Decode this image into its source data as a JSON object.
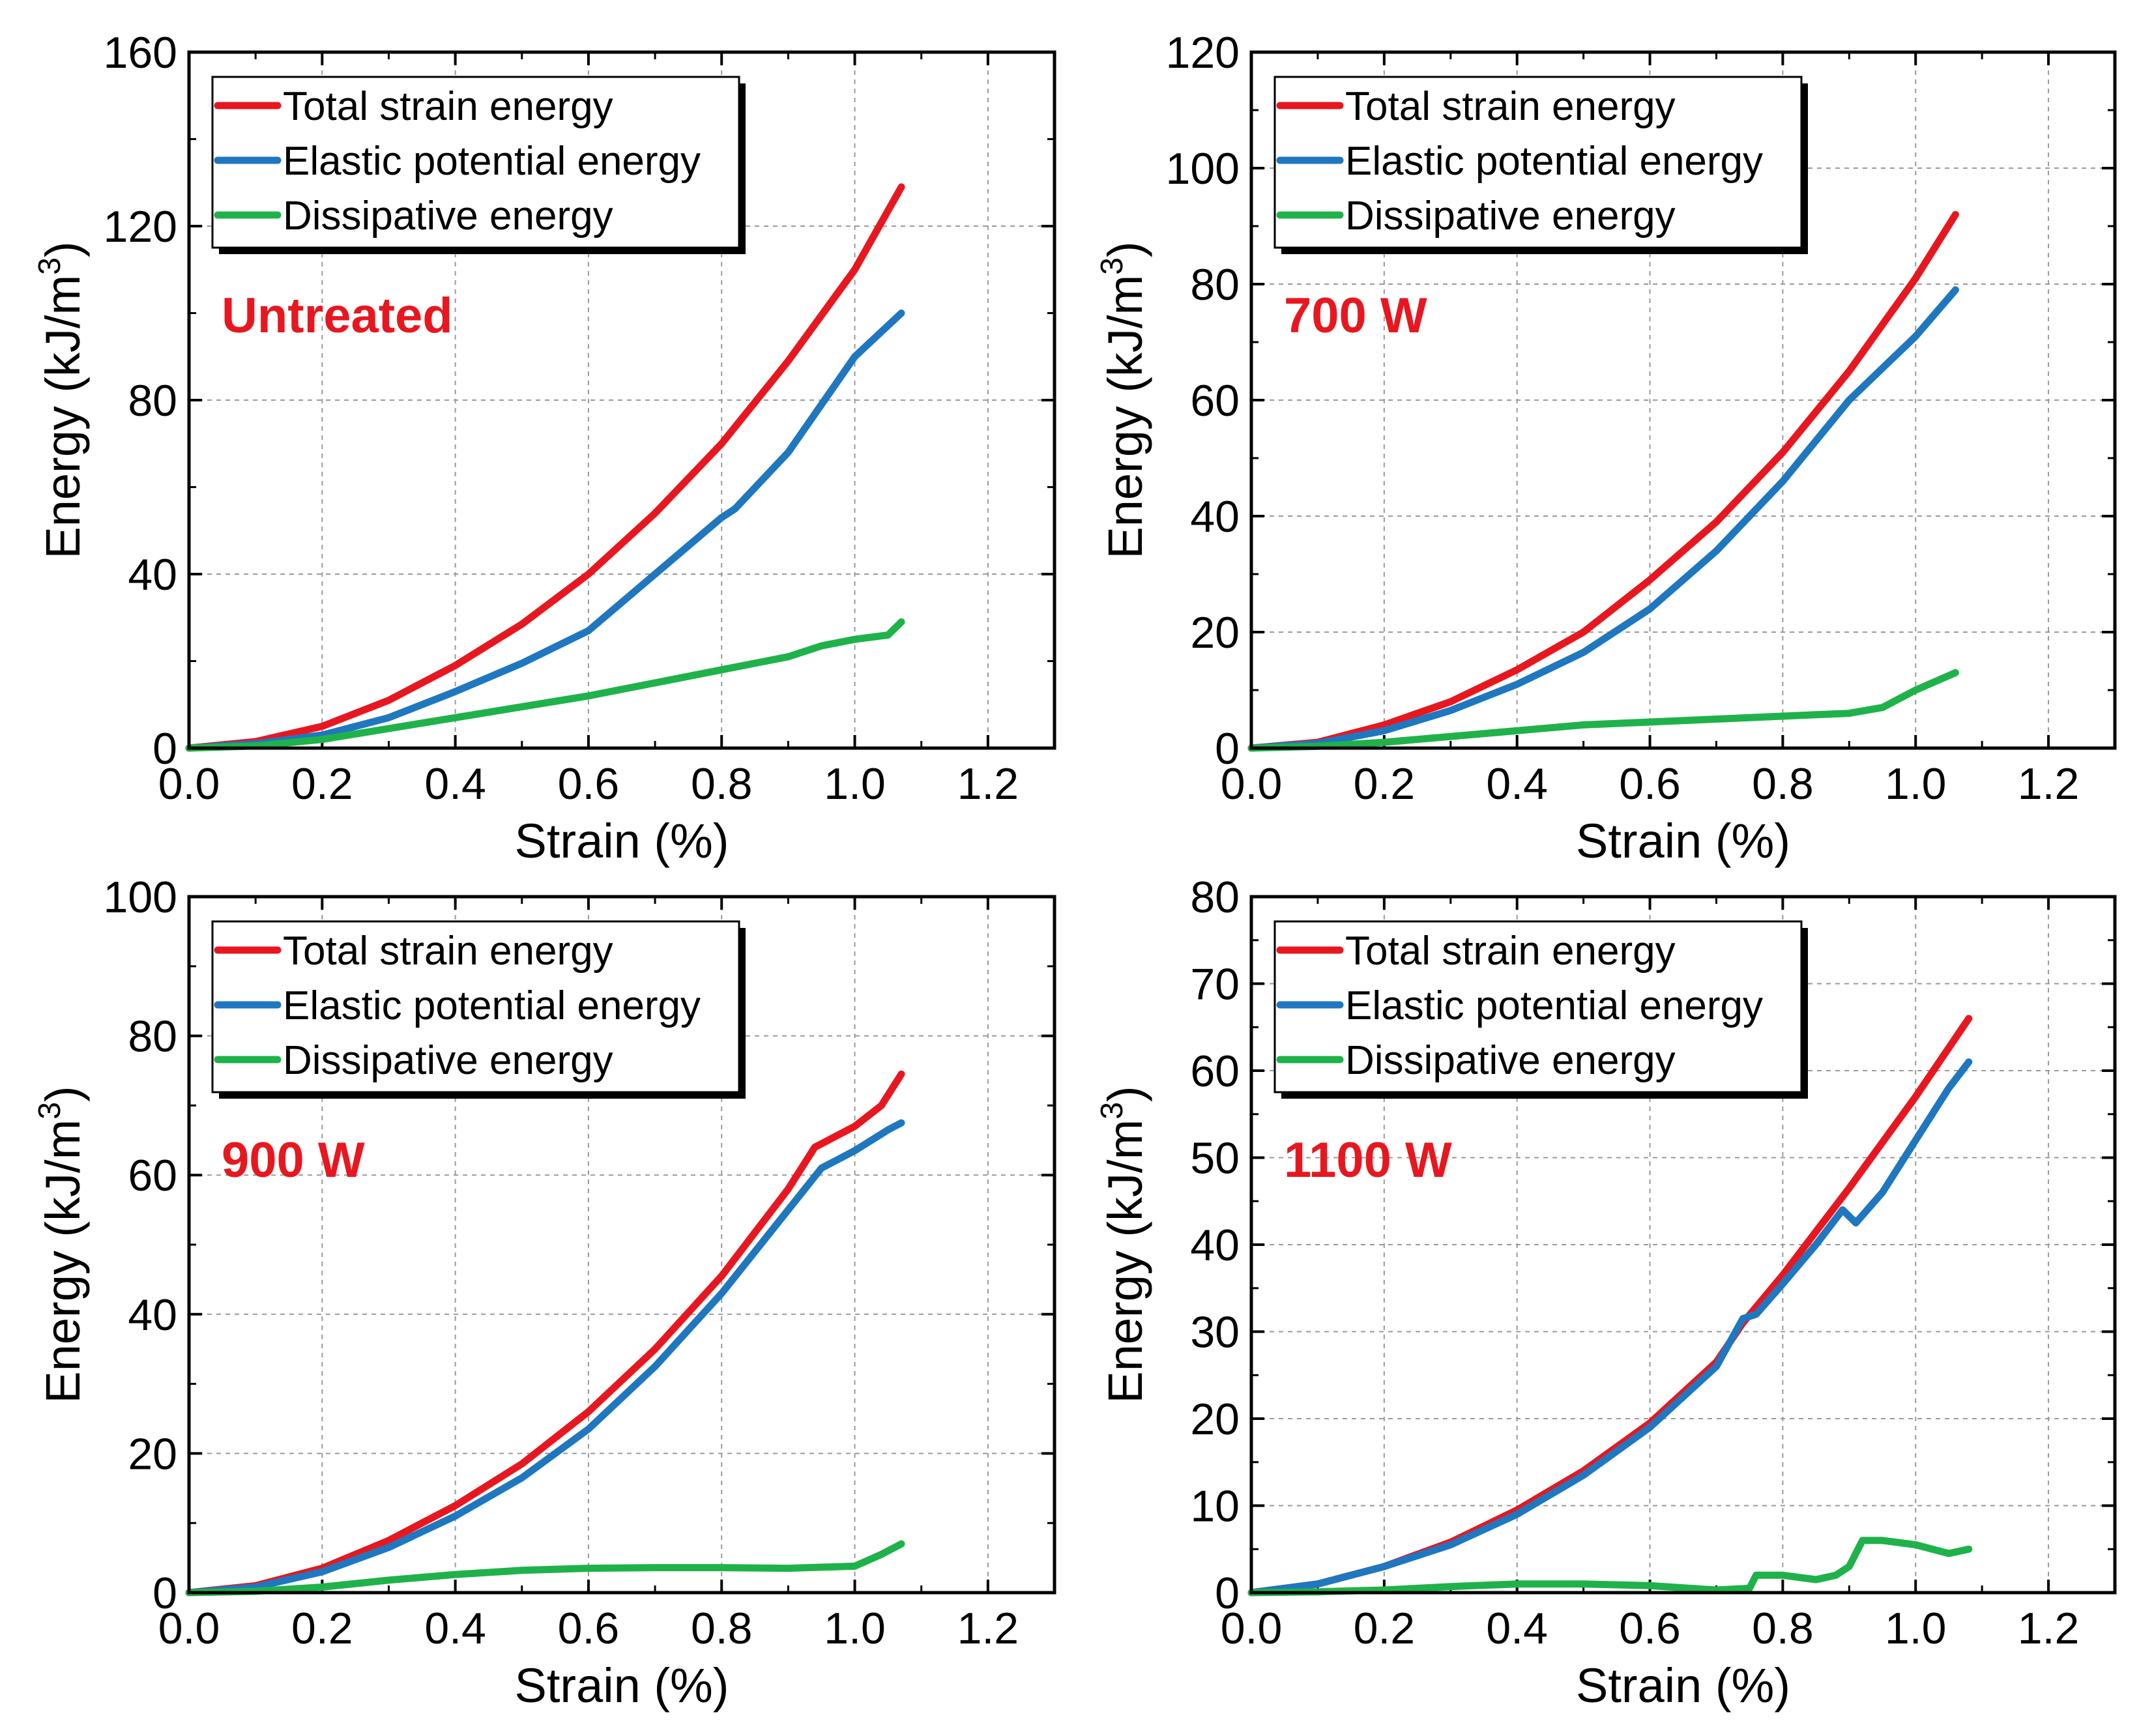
{
  "figure": {
    "legend_labels": [
      "Total strain energy",
      "Elastic potential energy",
      "Dissipative energy"
    ],
    "colors": {
      "total": "#e8171f",
      "elastic": "#1f77c0",
      "dissipative": "#1fb24a",
      "label": "#e8171f",
      "grid": "#9a9a9a"
    }
  },
  "chart_data": [
    {
      "type": "line",
      "label": "Untreated",
      "xlabel": "Strain (%)",
      "ylabel": "Energy (kJ/m",
      "ylabel_sup": "3",
      "ylabel_end": ")",
      "xlim": [
        0,
        1.3
      ],
      "ylim": [
        0,
        160
      ],
      "xticks": [
        "0.0",
        "0.2",
        "0.4",
        "0.6",
        "0.8",
        "1.0",
        "1.2"
      ],
      "yticks": [
        "0",
        "40",
        "80",
        "120",
        "160"
      ],
      "ytick_values": [
        0,
        40,
        80,
        120,
        160
      ],
      "legend": "top-left",
      "grid": true,
      "series": [
        {
          "name": "Total strain energy",
          "x": [
            0,
            0.1,
            0.2,
            0.3,
            0.4,
            0.5,
            0.6,
            0.7,
            0.8,
            0.9,
            1.0,
            1.07
          ],
          "y": [
            0,
            1.5,
            5,
            11,
            19,
            28.5,
            40,
            54,
            70,
            89,
            110,
            129
          ]
        },
        {
          "name": "Elastic potential energy",
          "x": [
            0,
            0.1,
            0.2,
            0.3,
            0.4,
            0.5,
            0.6,
            0.7,
            0.8,
            0.82,
            0.9,
            0.95,
            1.0,
            1.07
          ],
          "y": [
            0,
            1,
            3,
            7,
            13,
            19.5,
            27,
            40,
            53,
            55,
            68,
            79,
            90,
            100
          ]
        },
        {
          "name": "Dissipative energy",
          "x": [
            0,
            0.1,
            0.2,
            0.3,
            0.4,
            0.5,
            0.6,
            0.7,
            0.8,
            0.9,
            0.95,
            1.0,
            1.05,
            1.07
          ],
          "y": [
            0,
            0.5,
            2,
            4.5,
            7,
            9.5,
            12,
            15,
            18,
            21,
            23.5,
            25,
            26,
            29
          ]
        }
      ]
    },
    {
      "type": "line",
      "label": "700 W",
      "xlabel": "Strain (%)",
      "ylabel": "Energy (kJ/m",
      "ylabel_sup": "3",
      "ylabel_end": ")",
      "xlim": [
        0,
        1.3
      ],
      "ylim": [
        0,
        120
      ],
      "xticks": [
        "0.0",
        "0.2",
        "0.4",
        "0.6",
        "0.8",
        "1.0",
        "1.2"
      ],
      "yticks": [
        "0",
        "20",
        "40",
        "60",
        "80",
        "100",
        "120"
      ],
      "ytick_values": [
        0,
        20,
        40,
        60,
        80,
        100,
        120
      ],
      "legend": "top-left",
      "grid": true,
      "series": [
        {
          "name": "Total strain energy",
          "x": [
            0,
            0.1,
            0.2,
            0.3,
            0.4,
            0.5,
            0.6,
            0.7,
            0.8,
            0.9,
            1.0,
            1.06
          ],
          "y": [
            0,
            1,
            4,
            8,
            13.5,
            20,
            29,
            39,
            51,
            65,
            81,
            92
          ]
        },
        {
          "name": "Elastic potential energy",
          "x": [
            0,
            0.1,
            0.2,
            0.3,
            0.4,
            0.5,
            0.6,
            0.7,
            0.8,
            0.9,
            1.0,
            1.06
          ],
          "y": [
            0,
            0.8,
            3,
            6.5,
            11,
            16.5,
            24,
            34,
            46,
            60,
            71,
            79
          ]
        },
        {
          "name": "Dissipative energy",
          "x": [
            0,
            0.1,
            0.2,
            0.3,
            0.4,
            0.5,
            0.6,
            0.7,
            0.8,
            0.9,
            0.95,
            1.0,
            1.06
          ],
          "y": [
            0,
            0.3,
            1,
            2,
            3,
            4,
            4.5,
            5,
            5.5,
            6,
            7,
            10,
            13
          ]
        }
      ]
    },
    {
      "type": "line",
      "label": "900 W",
      "xlabel": "Strain (%)",
      "ylabel": "Energy (kJ/m",
      "ylabel_sup": "3",
      "ylabel_end": ")",
      "xlim": [
        0,
        1.3
      ],
      "ylim": [
        0,
        100
      ],
      "xticks": [
        "0.0",
        "0.2",
        "0.4",
        "0.6",
        "0.8",
        "1.0",
        "1.2"
      ],
      "yticks": [
        "0",
        "20",
        "40",
        "60",
        "80",
        "100"
      ],
      "ytick_values": [
        0,
        20,
        40,
        60,
        80,
        100
      ],
      "legend": "top-left",
      "grid": true,
      "series": [
        {
          "name": "Total strain energy",
          "x": [
            0,
            0.1,
            0.2,
            0.3,
            0.4,
            0.5,
            0.6,
            0.7,
            0.8,
            0.9,
            0.94,
            1.0,
            1.04,
            1.07
          ],
          "y": [
            0,
            1,
            3.5,
            7.5,
            12.5,
            18.5,
            26,
            35,
            45.5,
            58,
            64,
            67,
            70,
            74.5
          ]
        },
        {
          "name": "Elastic potential energy",
          "x": [
            0,
            0.1,
            0.2,
            0.3,
            0.4,
            0.5,
            0.6,
            0.7,
            0.8,
            0.9,
            0.95,
            1.0,
            1.05,
            1.07
          ],
          "y": [
            0,
            0.8,
            3,
            6.5,
            11,
            16.5,
            23.5,
            32.5,
            43,
            55,
            61,
            63.5,
            66.5,
            67.5
          ]
        },
        {
          "name": "Dissipative energy",
          "x": [
            0,
            0.1,
            0.2,
            0.3,
            0.4,
            0.5,
            0.6,
            0.7,
            0.8,
            0.9,
            1.0,
            1.04,
            1.07
          ],
          "y": [
            0,
            0.2,
            0.8,
            1.8,
            2.6,
            3.2,
            3.5,
            3.6,
            3.6,
            3.5,
            3.8,
            5.5,
            7
          ]
        }
      ]
    },
    {
      "type": "line",
      "label": "1100 W",
      "xlabel": "Strain (%)",
      "ylabel": "Energy (kJ/m",
      "ylabel_sup": "3",
      "ylabel_end": ")",
      "xlim": [
        0,
        1.3
      ],
      "ylim": [
        0,
        80
      ],
      "xticks": [
        "0.0",
        "0.2",
        "0.4",
        "0.6",
        "0.8",
        "1.0",
        "1.2"
      ],
      "yticks": [
        "0",
        "10",
        "20",
        "30",
        "40",
        "50",
        "60",
        "70",
        "80"
      ],
      "ytick_values": [
        0,
        10,
        20,
        30,
        40,
        50,
        60,
        70,
        80
      ],
      "legend": "top-left",
      "grid": true,
      "series": [
        {
          "name": "Total strain energy",
          "x": [
            0,
            0.1,
            0.2,
            0.3,
            0.4,
            0.5,
            0.6,
            0.7,
            0.74,
            0.8,
            0.9,
            1.0,
            1.08
          ],
          "y": [
            0,
            1,
            3,
            5.8,
            9.5,
            14,
            19.5,
            26.5,
            31,
            36.5,
            46.5,
            57,
            66
          ]
        },
        {
          "name": "Elastic potential energy",
          "x": [
            0,
            0.1,
            0.2,
            0.3,
            0.4,
            0.5,
            0.6,
            0.7,
            0.74,
            0.76,
            0.8,
            0.85,
            0.89,
            0.91,
            0.95,
            1.0,
            1.05,
            1.08
          ],
          "y": [
            0,
            1,
            3,
            5.5,
            9,
            13.5,
            19,
            26,
            31.5,
            32,
            35.5,
            40,
            44,
            42.5,
            46,
            52,
            58,
            61
          ]
        },
        {
          "name": "Dissipative energy",
          "x": [
            0,
            0.1,
            0.2,
            0.3,
            0.4,
            0.5,
            0.6,
            0.7,
            0.75,
            0.76,
            0.8,
            0.85,
            0.88,
            0.9,
            0.92,
            0.95,
            1.0,
            1.05,
            1.08
          ],
          "y": [
            0,
            0.1,
            0.3,
            0.7,
            1,
            1,
            0.8,
            0.3,
            0.5,
            2,
            2,
            1.5,
            2,
            3,
            6,
            6,
            5.5,
            4.5,
            5
          ]
        }
      ]
    }
  ]
}
